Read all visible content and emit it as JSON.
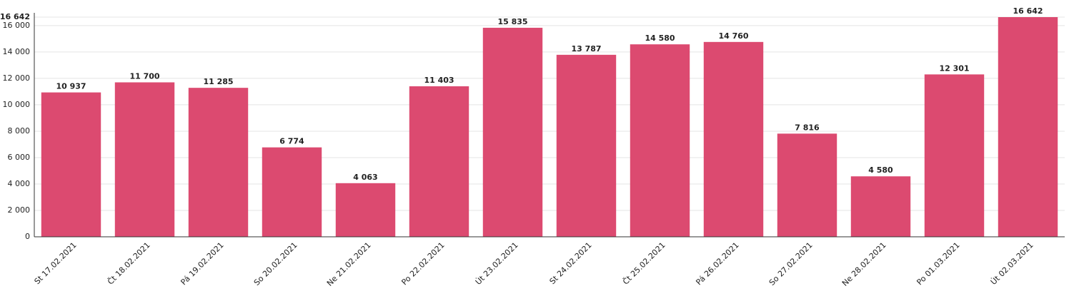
{
  "chart_data": {
    "type": "bar",
    "categories": [
      "St 17.02.2021",
      "Čt 18.02.2021",
      "Pá 19.02.2021",
      "So 20.02.2021",
      "Ne 21.02.2021",
      "Po 22.02.2021",
      "Út 23.02.2021",
      "St 24.02.2021",
      "Čt 25.02.2021",
      "Pá 26.02.2021",
      "So 27.02.2021",
      "Ne 28.02.2021",
      "Po 01.03.2021",
      "Út 02.03.2021"
    ],
    "values": [
      10937,
      11700,
      11285,
      6774,
      4063,
      11403,
      15835,
      13787,
      14580,
      14760,
      7816,
      4580,
      12301,
      16642
    ],
    "value_labels": [
      "10 937",
      "11 700",
      "11 285",
      "6 774",
      "4 063",
      "11 403",
      "15 835",
      "13 787",
      "14 580",
      "14 760",
      "7 816",
      "4 580",
      "12 301",
      "16 642"
    ],
    "color": "#dc4a70",
    "ylim": [
      0,
      16642
    ],
    "yticks": [
      0,
      {
        "value": 2000,
        "label": "2 000"
      },
      {
        "value": 4000,
        "label": "4 000"
      },
      {
        "value": 6000,
        "label": "6 000"
      },
      {
        "value": 8000,
        "label": "8 000"
      },
      {
        "value": 10000,
        "label": "10 000"
      },
      {
        "value": 12000,
        "label": "12 000"
      },
      {
        "value": 14000,
        "label": "14 000"
      },
      {
        "value": 16000,
        "label": "16 000"
      },
      {
        "value": 16642,
        "label": "16 642"
      }
    ],
    "grid": true
  }
}
